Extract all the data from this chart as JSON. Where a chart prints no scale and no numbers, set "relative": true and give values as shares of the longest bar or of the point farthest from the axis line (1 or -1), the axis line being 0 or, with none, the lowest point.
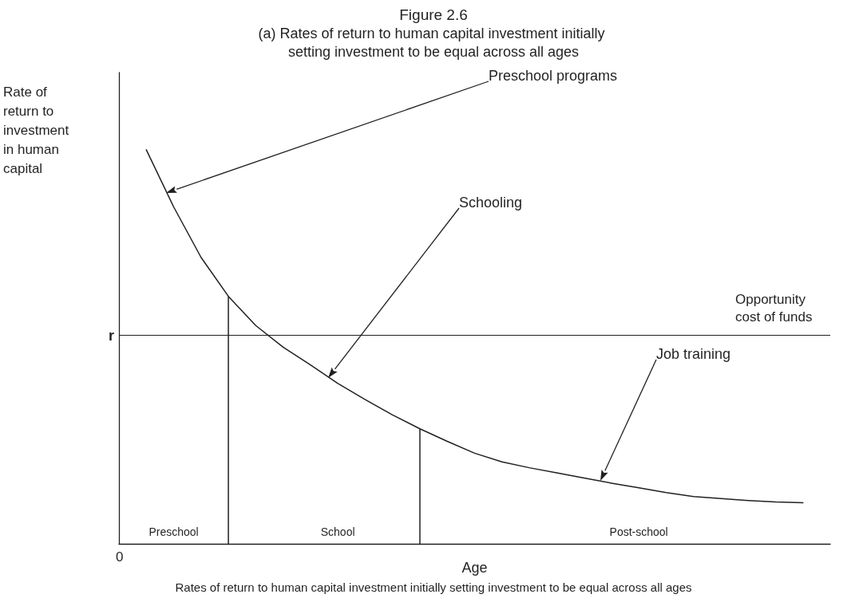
{
  "chart_data": {
    "type": "line",
    "relative": true,
    "title": "Figure 2.6",
    "subtitle": "(a) Rates of return to human capital investment initially setting investment to be equal across all ages",
    "xlabel": "Age",
    "ylabel": "Rate of return to investment in human capital",
    "categories": [
      null,
      null,
      "Preschool",
      null,
      null,
      null,
      null,
      null,
      "School",
      null,
      null,
      null,
      null,
      null,
      null,
      null,
      null,
      null,
      null,
      "Post-school",
      null,
      null,
      null,
      null,
      null,
      null,
      null
    ],
    "tick_labels": "x",
    "grid": false,
    "marker": "none",
    "line_style": "solid",
    "series": [
      {
        "color": "#231f20",
        "values": [
          null,
          1,
          0.855,
          0.727,
          0.628,
          0.554,
          0.499,
          0.454,
          0.407,
          0.366,
          0.327,
          0.292,
          0.26,
          0.23,
          0.208,
          0.193,
          0.18,
          0.167,
          0.154,
          0.142,
          0.13,
          0.12,
          0.115,
          0.11,
          0.106,
          0.104,
          null
        ]
      },
      {
        "type": "bar",
        "color": "#231f20",
        "values": [
          null,
          null,
          null,
          null,
          0.628,
          null,
          null,
          null,
          null,
          null,
          null,
          0.292,
          null,
          null,
          null,
          null,
          null,
          null,
          null,
          null,
          null,
          null,
          null,
          null,
          null,
          null,
          null
        ]
      }
    ],
    "ref_lines": [
      {
        "axis": "y",
        "value": 0.529,
        "label": "Opportunity cost of funds",
        "color": "#231f20"
      }
    ],
    "annotations": [
      "Preschool programs",
      "Schooling",
      "Job training",
      "r",
      "0",
      "Rates of return to human capital investment initially setting investment to be equal across all ages"
    ]
  }
}
